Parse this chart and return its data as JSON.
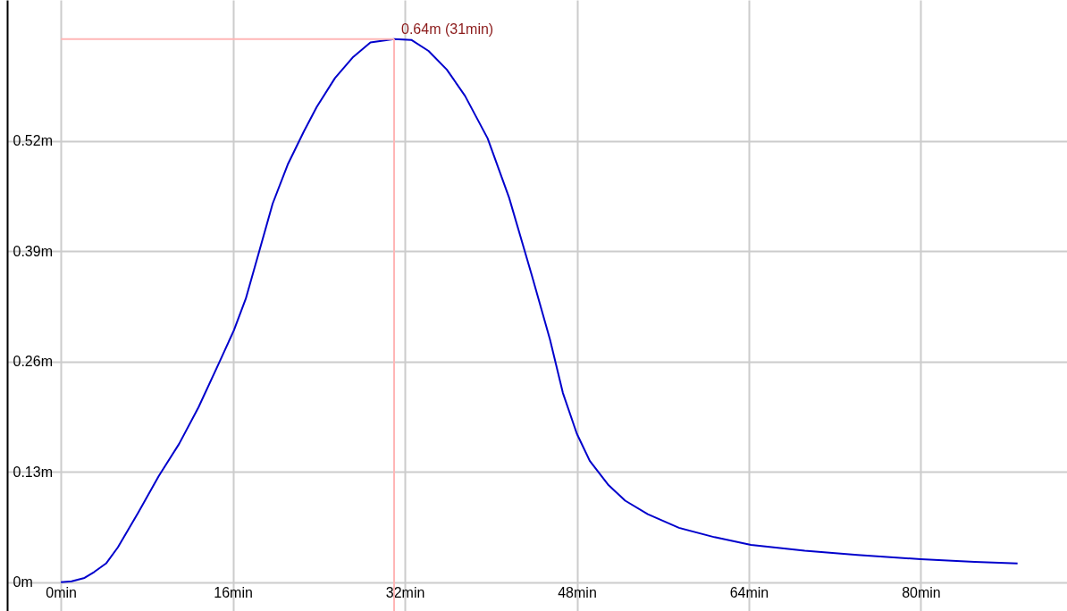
{
  "chart_data": {
    "type": "line",
    "x": [
      0,
      1,
      2.2,
      3.1,
      4.2,
      5.3,
      7.2,
      9.1,
      11,
      12.8,
      14.7,
      16.1,
      17.2,
      18.5,
      19.7,
      21.1,
      22.6,
      23.8,
      25.5,
      27.2,
      28.8,
      31,
      32.6,
      34.2,
      35.9,
      37.6,
      39.7,
      41.7,
      43.8,
      45.5,
      46.7,
      48,
      49.2,
      50.9,
      52.5,
      54.6,
      57.5,
      60.8,
      64.2,
      69.2,
      74.1,
      80,
      85,
      89
    ],
    "series": [
      {
        "color": "#0000cc",
        "values": [
          0,
          0.001,
          0.005,
          0.012,
          0.022,
          0.041,
          0.082,
          0.125,
          0.163,
          0.206,
          0.258,
          0.297,
          0.334,
          0.392,
          0.446,
          0.492,
          0.531,
          0.56,
          0.594,
          0.619,
          0.636,
          0.64,
          0.639,
          0.626,
          0.604,
          0.573,
          0.523,
          0.453,
          0.362,
          0.286,
          0.223,
          0.175,
          0.143,
          0.115,
          0.096,
          0.08,
          0.064,
          0.053,
          0.044,
          0.037,
          0.032,
          0.027,
          0.024,
          0.022
        ]
      }
    ],
    "xlim": [
      -5,
      93.6
    ],
    "ylim": [
      -0.034,
      0.686
    ],
    "xticks": [
      {
        "value": 0,
        "label": "0min"
      },
      {
        "value": 16,
        "label": "16min"
      },
      {
        "value": 32,
        "label": "32min"
      },
      {
        "value": 48,
        "label": "48min"
      },
      {
        "value": 64,
        "label": "64min"
      },
      {
        "value": 80,
        "label": "80min"
      }
    ],
    "yticks": [
      {
        "value": 0,
        "label": "0m"
      },
      {
        "value": 0.13,
        "label": "0.13m"
      },
      {
        "value": 0.26,
        "label": "0.26m"
      },
      {
        "value": 0.39,
        "label": "0.39m"
      },
      {
        "value": 0.52,
        "label": "0.52m"
      }
    ],
    "annotations": [
      {
        "text": "0.64m (31min)",
        "x": 31,
        "y": 0.64
      }
    ],
    "ref_lines": [
      {
        "axis": "x",
        "value": 31,
        "color": "#ffb6b6"
      },
      {
        "axis": "y",
        "value": 0.64,
        "color": "#ffb6b6"
      }
    ],
    "grid": true,
    "marker": "none",
    "line_style": "solid"
  }
}
